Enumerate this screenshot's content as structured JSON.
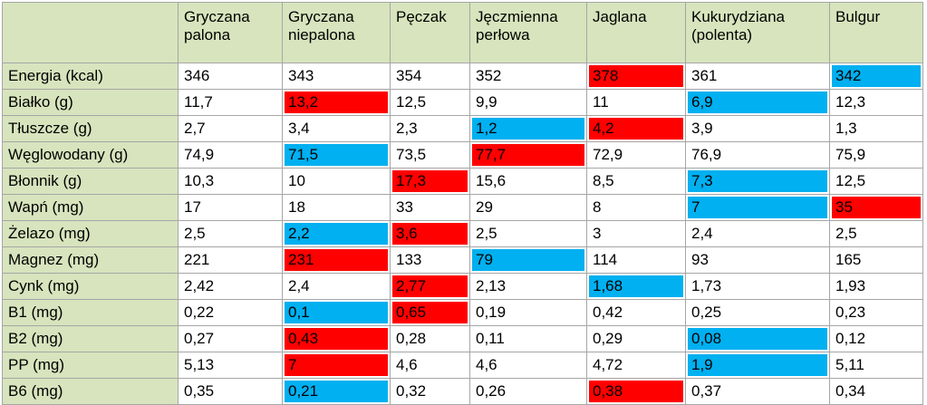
{
  "table": {
    "columns": [
      "Gryczana palona",
      "Gryczana niepalona",
      "Pęczak",
      "Jęczmienna perłowa",
      "Jaglana",
      "Kukurydziana (polenta)",
      "Bulgur"
    ],
    "header_color": "#d7e4bd",
    "grid_color": "#a6a6a6",
    "rows": [
      {
        "label": "Energia (kcal)",
        "cells": [
          "346",
          "343",
          "354",
          "352",
          "378",
          "361",
          "342"
        ],
        "fills": [
          null,
          null,
          null,
          null,
          "#ff0000",
          null,
          "#00b0f0"
        ]
      },
      {
        "label": "Białko (g)",
        "cells": [
          "11,7",
          "13,2",
          "12,5",
          "9,9",
          "11",
          "6,9",
          "12,3"
        ],
        "fills": [
          null,
          "#ff0000",
          null,
          null,
          null,
          "#00b0f0",
          null
        ]
      },
      {
        "label": "Tłuszcze (g)",
        "cells": [
          "2,7",
          "3,4",
          "2,3",
          "1,2",
          "4,2",
          "3,9",
          "1,3"
        ],
        "fills": [
          null,
          null,
          null,
          "#00b0f0",
          "#ff0000",
          null,
          null
        ]
      },
      {
        "label": "Węglowodany (g)",
        "cells": [
          "74,9",
          "71,5",
          "73,5",
          "77,7",
          "72,9",
          "76,9",
          "75,9"
        ],
        "fills": [
          null,
          "#00b0f0",
          null,
          "#ff0000",
          null,
          null,
          null
        ]
      },
      {
        "label": "Błonnik (g)",
        "cells": [
          "10,3",
          "10",
          "17,3",
          "15,6",
          "8,5",
          "7,3",
          "12,5"
        ],
        "fills": [
          null,
          null,
          "#ff0000",
          null,
          null,
          "#00b0f0",
          null
        ]
      },
      {
        "label": "Wapń (mg)",
        "cells": [
          "17",
          "18",
          "33",
          "29",
          "8",
          "7",
          "35"
        ],
        "fills": [
          null,
          null,
          null,
          null,
          null,
          "#00b0f0",
          "#ff0000"
        ]
      },
      {
        "label": "Żelazo (mg)",
        "cells": [
          "2,5",
          "2,2",
          "3,6",
          "2,5",
          "3",
          "2,4",
          "2,5"
        ],
        "fills": [
          null,
          "#00b0f0",
          "#ff0000",
          null,
          null,
          null,
          null
        ]
      },
      {
        "label": "Magnez (mg)",
        "cells": [
          "221",
          "231",
          "133",
          "79",
          "114",
          "93",
          "165"
        ],
        "fills": [
          null,
          "#ff0000",
          null,
          "#00b0f0",
          null,
          null,
          null
        ]
      },
      {
        "label": "Cynk (mg)",
        "cells": [
          "2,42",
          "2,4",
          "2,77",
          "2,13",
          "1,68",
          "1,73",
          "1,93"
        ],
        "fills": [
          null,
          null,
          "#ff0000",
          null,
          "#00b0f0",
          null,
          null
        ]
      },
      {
        "label": "B1 (mg)",
        "cells": [
          "0,22",
          "0,1",
          "0,65",
          "0,19",
          "0,42",
          "0,25",
          "0,23"
        ],
        "fills": [
          null,
          "#00b0f0",
          "#ff0000",
          null,
          null,
          null,
          null
        ]
      },
      {
        "label": "B2 (mg)",
        "cells": [
          "0,27",
          "0,43",
          "0,28",
          "0,11",
          "0,29",
          "0,08",
          "0,12"
        ],
        "fills": [
          null,
          "#ff0000",
          null,
          null,
          null,
          "#00b0f0",
          null
        ]
      },
      {
        "label": "PP (mg)",
        "cells": [
          "5,13",
          "7",
          "4,6",
          "4,6",
          "4,72",
          "1,9",
          "5,11"
        ],
        "fills": [
          null,
          "#ff0000",
          null,
          null,
          null,
          "#00b0f0",
          null
        ]
      },
      {
        "label": "B6 (mg)",
        "cells": [
          "0,35",
          "0,21",
          "0,32",
          "0,26",
          "0,38",
          "0,37",
          "0,34"
        ],
        "fills": [
          null,
          "#00b0f0",
          null,
          null,
          "#ff0000",
          null,
          null
        ]
      }
    ]
  }
}
